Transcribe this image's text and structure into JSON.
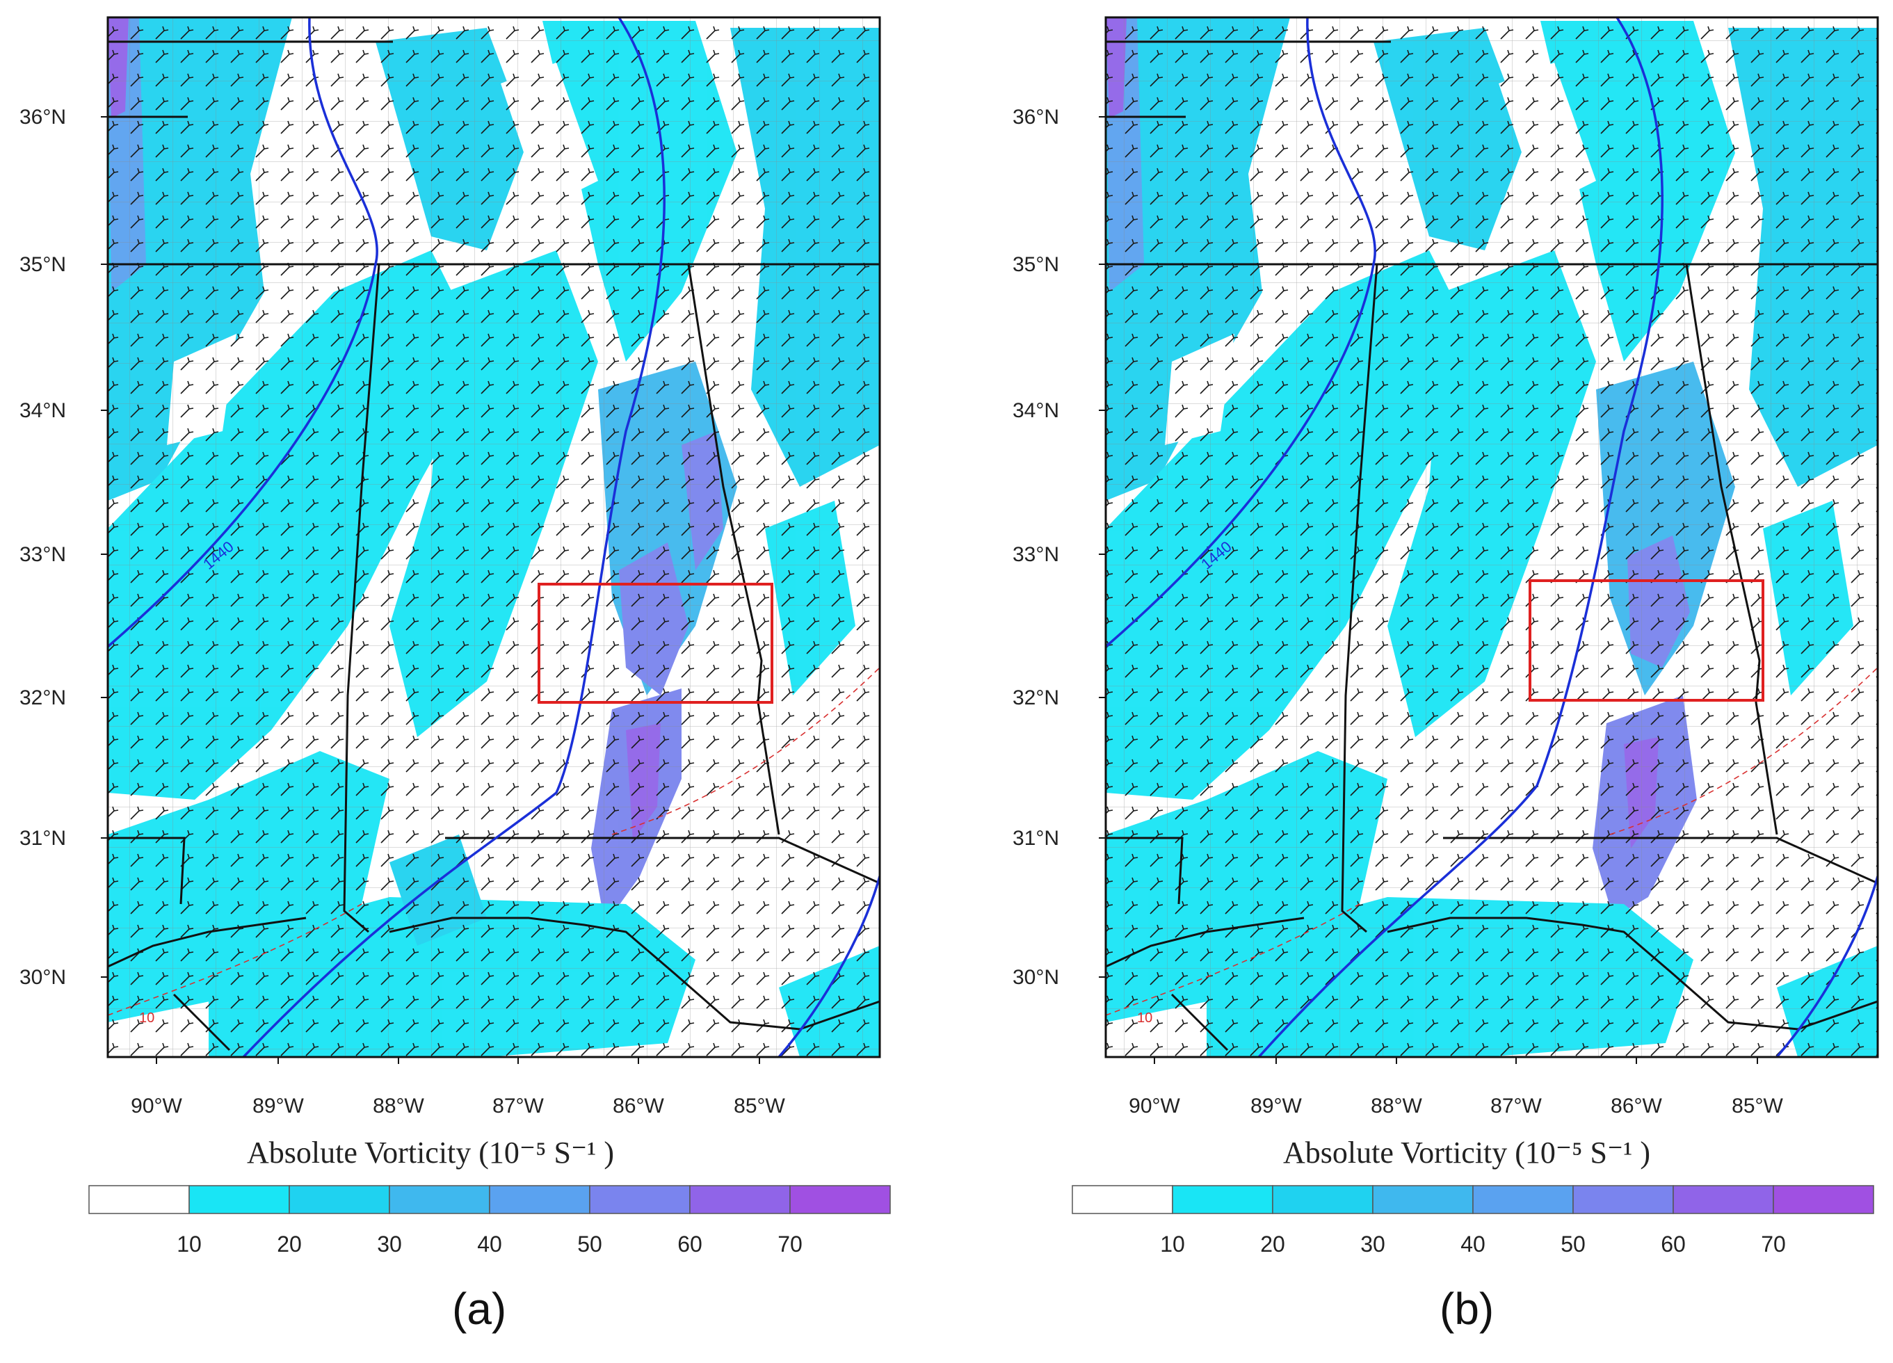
{
  "colorbar": {
    "title": "Absolute Vorticity (10⁻⁵ S⁻¹ )",
    "ticks": [
      "10",
      "20",
      "30",
      "40",
      "50",
      "60",
      "70"
    ],
    "colors": [
      "#ffffff",
      "#19e5f5",
      "#1fd2f0",
      "#3fb8ee",
      "#5aa2f0",
      "#7a84ee",
      "#9064e8",
      "#a050e2"
    ]
  },
  "axes": {
    "lat_labels": [
      "36°N",
      "35°N",
      "34°N",
      "33°N",
      "32°N",
      "31°N",
      "30°N"
    ],
    "lon_labels": [
      "90°W",
      "89°W",
      "88°W",
      "87°W",
      "86°W",
      "85°W"
    ]
  },
  "contour_labels": {
    "blue": "1440",
    "red": "10"
  },
  "panels": [
    {
      "label": "(a)",
      "box_color": "#e02020"
    },
    {
      "label": "(b)",
      "box_color": "#e02020"
    }
  ],
  "colors": {
    "contour_blue": "#1a2fd8",
    "contour_red": "#d83030",
    "border": "#111111"
  }
}
